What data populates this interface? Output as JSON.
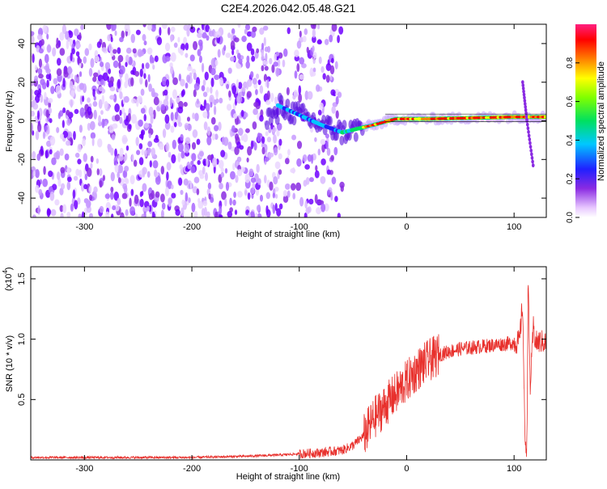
{
  "title": "C2E4.2026.042.05.48.G21",
  "chart_data": [
    {
      "type": "heatmap",
      "name": "spectrogram",
      "xlabel": "Height of straight line (km)",
      "ylabel": "Frequency (Hz)",
      "xlim": [
        -350,
        130
      ],
      "ylim": [
        -50,
        50
      ],
      "xticks": [
        -300,
        -200,
        -100,
        0,
        100
      ],
      "yticks": [
        -40,
        -20,
        0,
        20,
        40
      ],
      "colorbar": {
        "label": "Normalized spectral amplitude",
        "range": [
          0,
          1
        ],
        "ticks": [
          "0.0",
          "0.2",
          "0.4",
          "0.6",
          "0.8"
        ],
        "tick_values": [
          0.0,
          0.2,
          0.4,
          0.6,
          0.8
        ]
      },
      "features": {
        "noise_region_x": [
          -350,
          -60
        ],
        "signal_track": [
          {
            "x": -120,
            "y": 8
          },
          {
            "x": -100,
            "y": 3
          },
          {
            "x": -80,
            "y": -2
          },
          {
            "x": -60,
            "y": -6
          },
          {
            "x": -45,
            "y": -4
          },
          {
            "x": -30,
            "y": -2
          },
          {
            "x": -10,
            "y": 1
          },
          {
            "x": 20,
            "y": 1
          },
          {
            "x": 60,
            "y": 1.5
          },
          {
            "x": 100,
            "y": 2
          },
          {
            "x": 130,
            "y": 2
          }
        ],
        "tail_segment": [
          {
            "x": 108,
            "y": 20
          },
          {
            "x": 112,
            "y": 0
          },
          {
            "x": 118,
            "y": -24
          }
        ]
      }
    },
    {
      "type": "line",
      "name": "snr",
      "xlabel": "Height of straight line (km)",
      "ylabel": "SNR (10 * v/v)",
      "scale_label": "(x10",
      "scale_exponent": "4",
      "scale_suffix": ")",
      "xlim": [
        -350,
        130
      ],
      "ylim": [
        0,
        1.6
      ],
      "xticks": [
        -300,
        -200,
        -100,
        0,
        100
      ],
      "yticks": [
        0.5,
        1.0,
        1.5
      ],
      "ytick_labels": [
        "0.5",
        "1.0",
        "1.5"
      ],
      "color": "#e8302c",
      "x": [
        -350,
        -300,
        -200,
        -150,
        -120,
        -100,
        -80,
        -60,
        -50,
        -40,
        -30,
        -20,
        -10,
        0,
        10,
        20,
        30,
        40,
        50,
        60,
        70,
        80,
        90,
        100,
        105,
        108,
        110,
        112,
        113,
        115,
        118,
        120,
        125,
        130
      ],
      "y": [
        0.02,
        0.02,
        0.02,
        0.03,
        0.04,
        0.05,
        0.06,
        0.08,
        0.12,
        0.2,
        0.35,
        0.45,
        0.55,
        0.65,
        0.75,
        0.82,
        0.87,
        0.9,
        0.92,
        0.93,
        0.94,
        0.95,
        0.96,
        0.97,
        0.98,
        1.3,
        0.2,
        0.1,
        1.5,
        0.6,
        1.1,
        0.97,
        0.98,
        0.97
      ]
    }
  ]
}
